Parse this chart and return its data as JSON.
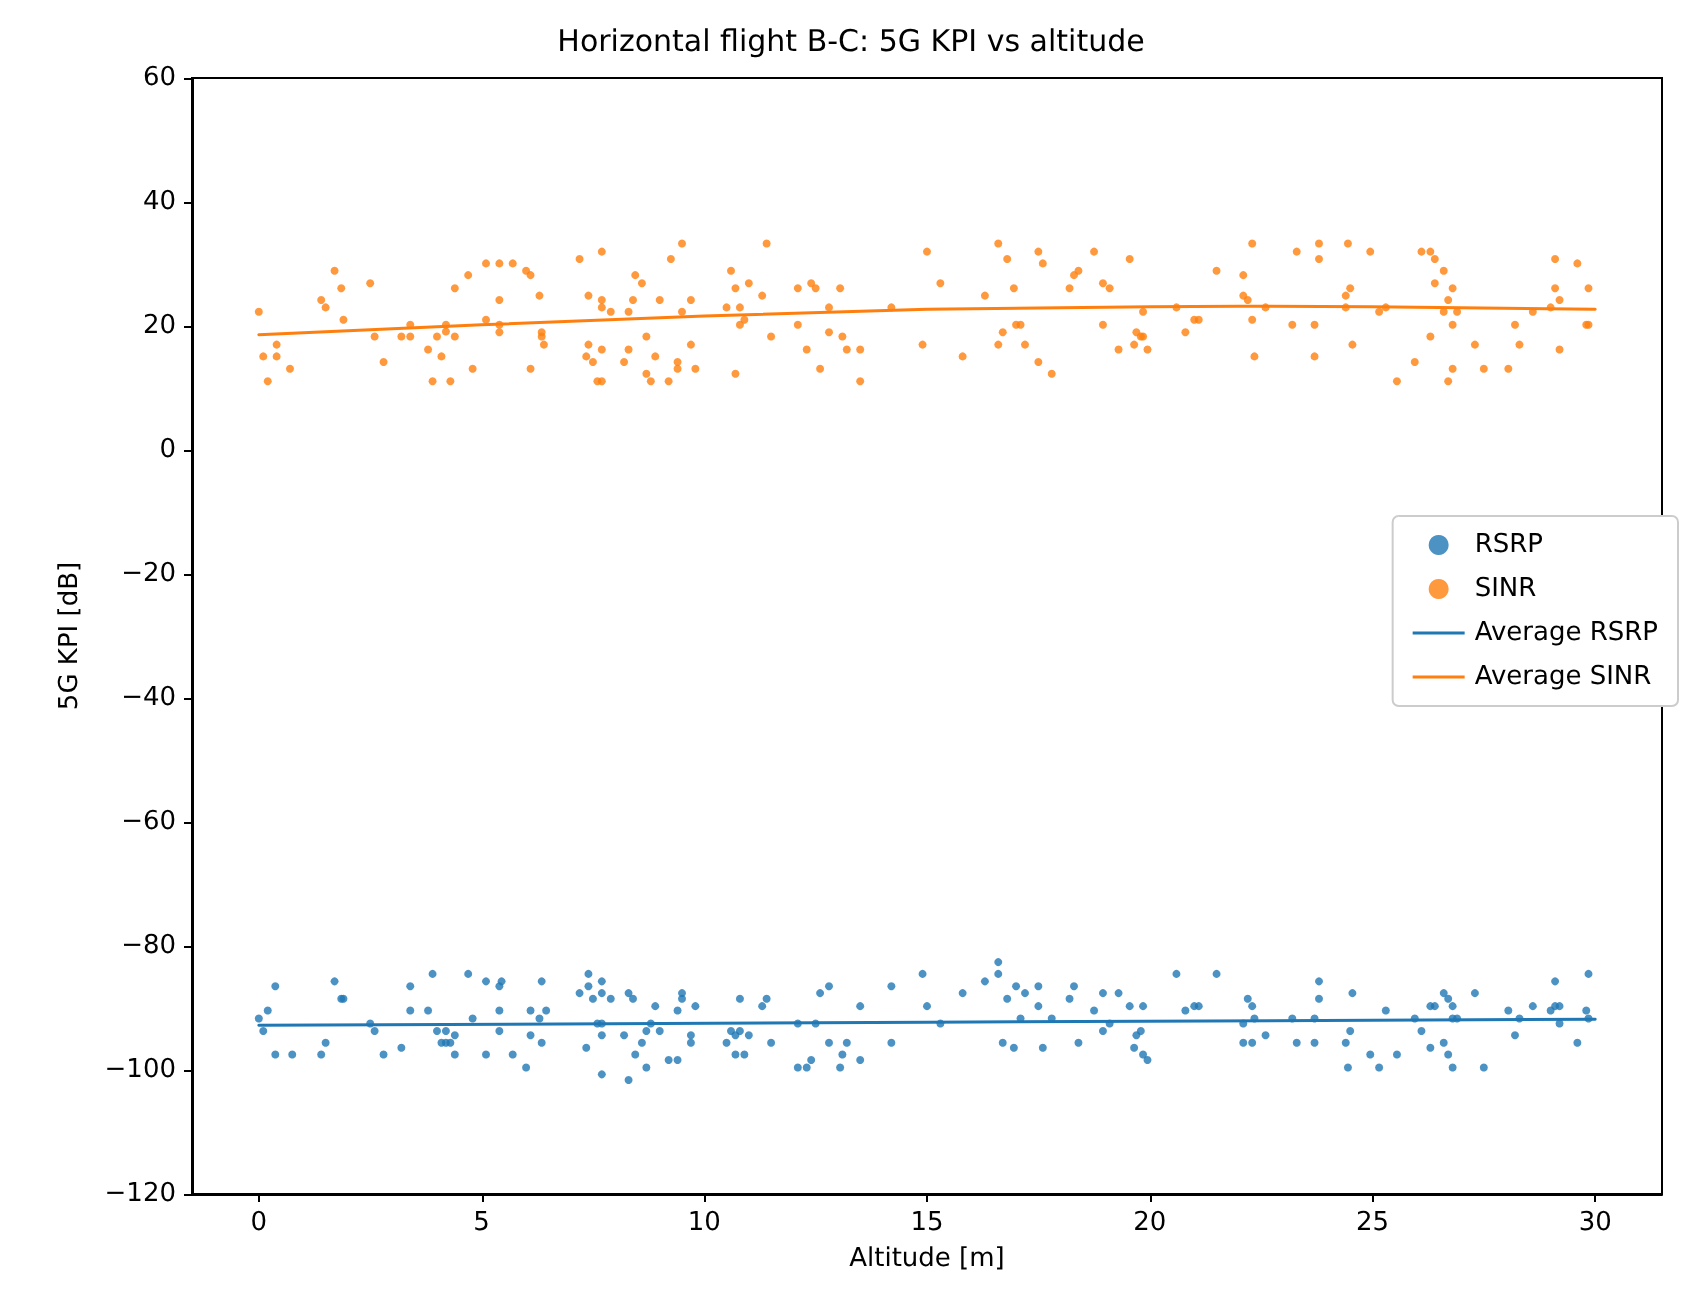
{
  "chart_data": {
    "type": "scatter",
    "title": "Horizontal flight B-C: 5G KPI vs altitude",
    "xlabel": "Altitude [m]",
    "ylabel": "5G KPI [dB]",
    "xlim": [
      -1.5,
      31.5
    ],
    "xticks": [
      0,
      5,
      10,
      15,
      20,
      25,
      30
    ],
    "ylim": [
      -120,
      60
    ],
    "yticks": [
      -120,
      -100,
      -80,
      -60,
      -40,
      -20,
      0,
      20,
      40,
      60
    ],
    "grid": false,
    "legend": "right",
    "series": [
      {
        "name": "RSRP",
        "marker": "circle",
        "color": "#1f77b4",
        "x": [
          0,
          0.1,
          0.2,
          0.37,
          0.37,
          0.75,
          1.4,
          1.5,
          1.7,
          1.85,
          1.9,
          2.5,
          2.6,
          2.8,
          3.2,
          3.4,
          3.4,
          3.8,
          3.9,
          4.0,
          4.1,
          4.2,
          4.3,
          4.2,
          4.4,
          4.4,
          4.7,
          4.8,
          5.1,
          5.1,
          5.4,
          5.45,
          5.4,
          5.4,
          5.7,
          6.0,
          6.1,
          6.1,
          6.3,
          6.35,
          6.35,
          6.45,
          7.2,
          7.35,
          7.4,
          7.4,
          7.5,
          7.6,
          7.7,
          7.7,
          7.7,
          7.7,
          7.7,
          7.9,
          8.2,
          8.3,
          8.4,
          8.3,
          8.45,
          8.6,
          8.7,
          8.7,
          8.8,
          8.9,
          9.0,
          9.2,
          9.4,
          9.4,
          9.5,
          9.5,
          9.7,
          9.7,
          9.8,
          10.5,
          10.6,
          10.7,
          10.7,
          10.8,
          10.8,
          10.9,
          11.0,
          11.3,
          11.4,
          11.5,
          12.1,
          12.1,
          12.3,
          12.4,
          12.5,
          12.6,
          12.8,
          12.8,
          13.05,
          13.1,
          13.2,
          13.5,
          13.5,
          14.2,
          14.2,
          14.9,
          15.0,
          15.3,
          15.8,
          16.3,
          16.6,
          16.6,
          16.7,
          16.8,
          16.95,
          17.0,
          17.2,
          17.1,
          17.5,
          17.5,
          17.6,
          17.8,
          18.2,
          18.3,
          18.4,
          18.75,
          18.95,
          18.95,
          19.1,
          19.3,
          19.55,
          19.65,
          19.7,
          19.8,
          19.85,
          19.85,
          19.95,
          20.6,
          20.8,
          21.0,
          21.1,
          21.5,
          22.1,
          22.1,
          22.3,
          22.2,
          22.3,
          22.35,
          22.6,
          23.2,
          23.3,
          23.7,
          23.7,
          23.8,
          23.8,
          24.4,
          24.45,
          24.5,
          24.55,
          24.95,
          25.15,
          25.3,
          25.55,
          25.95,
          26.1,
          26.3,
          26.3,
          26.4,
          26.6,
          26.7,
          26.8,
          26.6,
          26.7,
          26.8,
          26.8,
          26.9,
          27.3,
          27.5,
          28.05,
          28.2,
          28.3,
          28.6,
          29.0,
          29.1,
          29.2,
          29.1,
          29.2,
          29.6,
          29.8,
          29.85,
          29.85
        ],
        "values": [
          -91.7,
          -93.7,
          -90.4,
          -86.5,
          -97.5,
          -97.5,
          -97.5,
          -95.6,
          -85.7,
          -88.5,
          -88.5,
          -92.5,
          -93.7,
          -97.5,
          -96.4,
          -90.4,
          -86.5,
          -90.4,
          -84.5,
          -93.7,
          -95.6,
          -95.6,
          -95.6,
          -93.7,
          -94.4,
          -97.5,
          -84.5,
          -91.7,
          -85.7,
          -97.5,
          -86.5,
          -85.7,
          -90.4,
          -93.7,
          -97.5,
          -99.6,
          -90.4,
          -94.4,
          -91.7,
          -85.7,
          -95.6,
          -90.4,
          -87.6,
          -96.4,
          -84.5,
          -86.5,
          -88.5,
          -92.5,
          -92.5,
          -94.4,
          -87.6,
          -85.7,
          -100.7,
          -88.5,
          -94.4,
          -87.6,
          -88.5,
          -101.6,
          -97.5,
          -95.6,
          -93.7,
          -99.6,
          -92.5,
          -89.7,
          -93.7,
          -98.4,
          -98.4,
          -90.4,
          -87.6,
          -88.5,
          -94.4,
          -95.6,
          -89.7,
          -95.6,
          -93.7,
          -97.5,
          -94.4,
          -93.7,
          -88.5,
          -97.5,
          -94.4,
          -89.7,
          -88.5,
          -95.6,
          -92.5,
          -99.6,
          -99.6,
          -98.4,
          -92.5,
          -87.6,
          -86.5,
          -95.6,
          -99.6,
          -97.5,
          -95.6,
          -89.7,
          -98.4,
          -86.5,
          -95.6,
          -84.5,
          -89.7,
          -92.5,
          -87.6,
          -85.7,
          -82.6,
          -84.5,
          -95.6,
          -88.5,
          -96.4,
          -86.5,
          -87.6,
          -91.7,
          -89.7,
          -86.5,
          -96.4,
          -91.7,
          -88.5,
          -86.5,
          -95.6,
          -90.4,
          -87.6,
          -93.7,
          -92.5,
          -87.6,
          -89.7,
          -96.4,
          -94.4,
          -93.7,
          -89.7,
          -97.5,
          -98.4,
          -84.5,
          -90.4,
          -89.7,
          -89.7,
          -84.5,
          -92.5,
          -95.6,
          -95.6,
          -88.5,
          -89.7,
          -91.7,
          -94.4,
          -91.7,
          -95.6,
          -91.7,
          -95.6,
          -88.5,
          -85.7,
          -95.6,
          -99.6,
          -93.7,
          -87.6,
          -97.5,
          -99.6,
          -90.4,
          -97.5,
          -91.7,
          -93.7,
          -96.4,
          -89.7,
          -89.7,
          -87.6,
          -88.5,
          -89.7,
          -95.6,
          -97.5,
          -99.6,
          -91.7,
          -91.7,
          -87.6,
          -99.6,
          -90.4,
          -94.4,
          -91.7,
          -89.7,
          -90.4,
          -89.7,
          -89.7,
          -85.7,
          -92.5,
          -95.6,
          -90.4,
          -91.7,
          -84.5
        ]
      },
      {
        "name": "SINR",
        "marker": "circle",
        "color": "#ff7f0e",
        "x": [
          0,
          0.1,
          0.2,
          0.4,
          0.4,
          0.7,
          1.4,
          1.5,
          1.7,
          1.85,
          1.9,
          2.5,
          2.6,
          2.8,
          3.2,
          3.4,
          3.4,
          3.8,
          3.9,
          4.0,
          4.1,
          4.2,
          4.2,
          4.3,
          4.4,
          4.4,
          4.7,
          4.8,
          5.1,
          5.4,
          5.7,
          5.1,
          5.4,
          5.4,
          5.4,
          6.0,
          6.1,
          6.3,
          6.35,
          6.35,
          6.4,
          6.1,
          7.2,
          7.4,
          7.7,
          7.4,
          7.35,
          7.5,
          7.6,
          7.7,
          7.7,
          7.7,
          7.7,
          7.9,
          8.2,
          8.3,
          8.3,
          8.4,
          8.45,
          8.6,
          8.7,
          8.7,
          8.8,
          8.9,
          9.0,
          9.2,
          9.25,
          9.4,
          9.4,
          9.5,
          9.5,
          9.7,
          9.7,
          9.8,
          10.5,
          10.6,
          10.7,
          10.7,
          10.8,
          10.8,
          10.9,
          11.0,
          11.3,
          11.4,
          11.5,
          12.1,
          12.1,
          12.3,
          12.4,
          12.5,
          12.6,
          12.8,
          12.8,
          13.05,
          13.1,
          13.2,
          13.5,
          13.5,
          14.2,
          14.9,
          15.0,
          15.3,
          15.8,
          16.3,
          16.6,
          16.6,
          16.7,
          16.8,
          16.95,
          17.0,
          17.1,
          17.2,
          17.5,
          17.5,
          17.6,
          17.8,
          18.2,
          18.3,
          18.4,
          18.75,
          18.95,
          19.1,
          18.95,
          19.3,
          19.55,
          19.65,
          19.7,
          19.8,
          19.85,
          19.85,
          19.95,
          20.6,
          20.8,
          21.0,
          21.1,
          21.5,
          22.1,
          22.1,
          22.2,
          22.3,
          22.3,
          22.35,
          22.6,
          23.2,
          23.3,
          23.7,
          23.7,
          23.8,
          23.8,
          24.4,
          24.4,
          24.5,
          24.45,
          24.55,
          24.95,
          25.15,
          25.3,
          25.55,
          25.95,
          26.1,
          26.3,
          26.4,
          26.6,
          26.4,
          26.7,
          26.8,
          26.6,
          26.9,
          26.8,
          26.3,
          26.8,
          26.7,
          27.3,
          27.5,
          28.05,
          28.2,
          28.3,
          28.6,
          29.0,
          29.1,
          29.1,
          29.2,
          29.2,
          29.6,
          29.8,
          29.85,
          29.85
        ],
        "values": [
          22.3,
          15.1,
          11.1,
          17,
          15.1,
          13.1,
          24.2,
          23,
          28.9,
          26.1,
          21,
          26.9,
          18.3,
          14.2,
          18.3,
          18.3,
          20.2,
          16.2,
          11.1,
          18.3,
          15.1,
          19.1,
          20.2,
          11.1,
          18.3,
          26.1,
          28.2,
          13.1,
          30.1,
          30.1,
          30.1,
          21,
          24.2,
          20.2,
          19,
          28.9,
          28.2,
          24.9,
          19,
          18.3,
          17,
          13.1,
          30.8,
          24.9,
          32,
          17,
          15.1,
          14.2,
          11.1,
          11.1,
          24.2,
          23,
          16.2,
          22.3,
          14.2,
          16.2,
          22.3,
          24.2,
          28.2,
          26.9,
          18.3,
          12.3,
          11.1,
          15.1,
          24.2,
          11.1,
          30.8,
          14.2,
          13.1,
          22.3,
          33.3,
          24.2,
          17,
          13.1,
          23,
          28.9,
          12.3,
          26.1,
          23,
          20.2,
          21,
          26.9,
          24.9,
          33.3,
          18.3,
          26.1,
          20.2,
          16.2,
          26.9,
          26.1,
          13.1,
          23,
          19,
          26.1,
          18.3,
          16.2,
          11.1,
          16.2,
          23,
          17,
          32,
          26.9,
          15.1,
          24.9,
          33.3,
          17,
          19,
          30.8,
          26.1,
          20.2,
          20.2,
          17,
          32,
          14.2,
          30.1,
          12.3,
          26.1,
          28.2,
          28.9,
          32,
          26.9,
          26.1,
          20.2,
          16.2,
          30.8,
          17,
          19,
          18.3,
          18.3,
          22.3,
          16.2,
          23,
          19,
          21,
          21,
          28.9,
          28.2,
          24.9,
          24.2,
          33.3,
          21,
          15.1,
          23,
          20.2,
          32,
          20.2,
          15.1,
          30.8,
          33.3,
          23,
          24.9,
          26.1,
          33.3,
          17,
          32,
          22.3,
          23,
          11.1,
          14.2,
          32,
          32,
          30.8,
          28.9,
          26.9,
          24.2,
          26.1,
          22.3,
          22.3,
          20.2,
          18.3,
          13.1,
          11.1,
          17,
          13.1,
          13.1,
          20.2,
          17,
          22.3,
          23,
          30.8,
          26.1,
          24.2,
          16.2,
          30.1,
          20.2,
          20.2,
          26.1
        ]
      },
      {
        "name": "Average RSRP",
        "type": "line",
        "marker": "none",
        "line_style": "solid",
        "color": "#1f77b4",
        "x": [
          0,
          15,
          30
        ],
        "values": [
          -92.8,
          -92.3,
          -91.8
        ]
      },
      {
        "name": "Average SINR",
        "type": "line",
        "marker": "none",
        "line_style": "solid",
        "color": "#ff7f0e",
        "x": [
          0,
          5,
          10,
          15,
          20,
          22,
          25,
          30
        ],
        "values": [
          18.6,
          20.2,
          21.6,
          22.7,
          23.1,
          23.2,
          23.1,
          22.7
        ]
      }
    ]
  }
}
